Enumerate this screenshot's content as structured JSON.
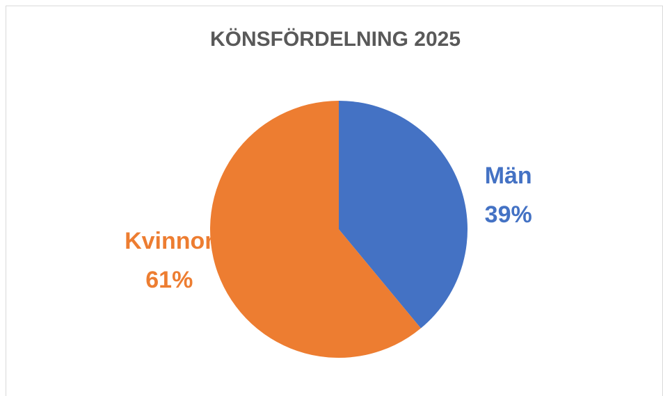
{
  "chart_data": {
    "type": "pie",
    "title": "KÖNSFÖRDELNING 2025",
    "categories": [
      "Män",
      "Kvinnor"
    ],
    "values": [
      39,
      61
    ],
    "value_labels": [
      "39%",
      "61%"
    ],
    "colors": [
      "#4472c4",
      "#ed7d31"
    ]
  }
}
